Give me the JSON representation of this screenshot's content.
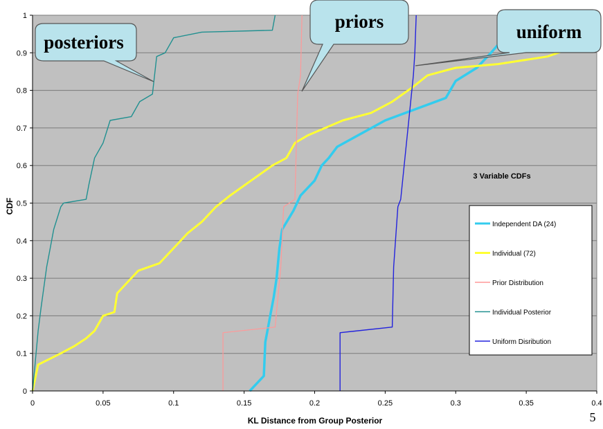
{
  "chart_data": {
    "type": "line",
    "title": "3 Variable CDFs",
    "xlabel": "KL Distance from Group Posterior",
    "ylabel": "CDF",
    "xlim": [
      0,
      0.4
    ],
    "ylim": [
      0,
      1
    ],
    "xticks": [
      0,
      0.05,
      0.1,
      0.15,
      0.2,
      0.25,
      0.3,
      0.35,
      0.4
    ],
    "xtick_labels": [
      "0",
      "0.05",
      "0.1",
      "0.15",
      "0.2",
      "0.25",
      "0.3",
      "0.35",
      "0.4"
    ],
    "yticks": [
      0,
      0.1,
      0.2,
      0.3,
      0.4,
      0.5,
      0.6,
      0.7,
      0.8,
      0.9,
      1
    ],
    "ytick_labels": [
      "0",
      "0.1",
      "0.2",
      "0.3",
      "0.4",
      "0.5",
      "0.6",
      "0.7",
      "0.8",
      "0.9",
      "1"
    ],
    "grid": "horizontal",
    "legend_position": "right",
    "plot_background": "#c0c0c0",
    "series": [
      {
        "name": "Independent DA (24)",
        "color": "#33ccee",
        "x": [
          0.154,
          0.164,
          0.165,
          0.167,
          0.169,
          0.171,
          0.173,
          0.175,
          0.177,
          0.181,
          0.185,
          0.19,
          0.2,
          0.205,
          0.21,
          0.216,
          0.25,
          0.293,
          0.3,
          0.315,
          0.325,
          0.332
        ],
        "y": [
          0,
          0.04,
          0.13,
          0.17,
          0.21,
          0.25,
          0.3,
          0.38,
          0.43,
          0.455,
          0.48,
          0.52,
          0.56,
          0.6,
          0.62,
          0.65,
          0.72,
          0.78,
          0.825,
          0.86,
          0.9,
          0.93
        ]
      },
      {
        "name": "Individual (72)",
        "color": "#ffff33",
        "x": [
          0,
          0.004,
          0.02,
          0.03,
          0.038,
          0.044,
          0.05,
          0.058,
          0.06,
          0.065,
          0.075,
          0.09,
          0.1,
          0.11,
          0.12,
          0.13,
          0.14,
          0.155,
          0.17,
          0.18,
          0.186,
          0.195,
          0.22,
          0.24,
          0.255,
          0.27,
          0.28,
          0.3,
          0.33,
          0.365,
          0.38,
          0.4
        ],
        "y": [
          0,
          0.07,
          0.1,
          0.12,
          0.14,
          0.16,
          0.2,
          0.21,
          0.26,
          0.28,
          0.32,
          0.34,
          0.38,
          0.42,
          0.45,
          0.49,
          0.52,
          0.56,
          0.6,
          0.62,
          0.66,
          0.68,
          0.72,
          0.74,
          0.77,
          0.81,
          0.84,
          0.86,
          0.87,
          0.89,
          0.91,
          0.92
        ]
      },
      {
        "name": "Prior Distribution",
        "color": "#ff9999",
        "x": [
          0.135,
          0.135,
          0.172,
          0.176,
          0.178,
          0.186,
          0.188,
          0.19,
          0.191
        ],
        "y": [
          0,
          0.155,
          0.17,
          0.33,
          0.49,
          0.51,
          0.79,
          0.84,
          1.0
        ]
      },
      {
        "name": "Individual Posterior",
        "color": "#209090",
        "x": [
          0.0,
          0.002,
          0.004,
          0.006,
          0.01,
          0.012,
          0.015,
          0.02,
          0.022,
          0.038,
          0.04,
          0.044,
          0.05,
          0.055,
          0.07,
          0.076,
          0.085,
          0.088,
          0.094,
          0.1,
          0.12,
          0.17,
          0.172
        ],
        "y": [
          0.0,
          0.08,
          0.16,
          0.22,
          0.33,
          0.37,
          0.43,
          0.49,
          0.5,
          0.51,
          0.55,
          0.62,
          0.66,
          0.72,
          0.73,
          0.77,
          0.79,
          0.89,
          0.9,
          0.94,
          0.955,
          0.96,
          1.0
        ]
      },
      {
        "name": "Uniform Disribution",
        "color": "#2222dd",
        "x": [
          0.218,
          0.218,
          0.255,
          0.256,
          0.259,
          0.261,
          0.27,
          0.271,
          0.272
        ],
        "y": [
          0,
          0.155,
          0.17,
          0.33,
          0.49,
          0.51,
          0.84,
          0.9,
          1.0
        ]
      }
    ],
    "annotations": [
      {
        "text": "posteriors",
        "points_to": [
          0.085,
          0.83
        ]
      },
      {
        "text": "priors",
        "points_to": [
          0.19,
          0.8
        ]
      },
      {
        "text": "uniform",
        "points_to": [
          0.272,
          0.87
        ]
      }
    ]
  },
  "slide": {
    "page_number": "5"
  }
}
